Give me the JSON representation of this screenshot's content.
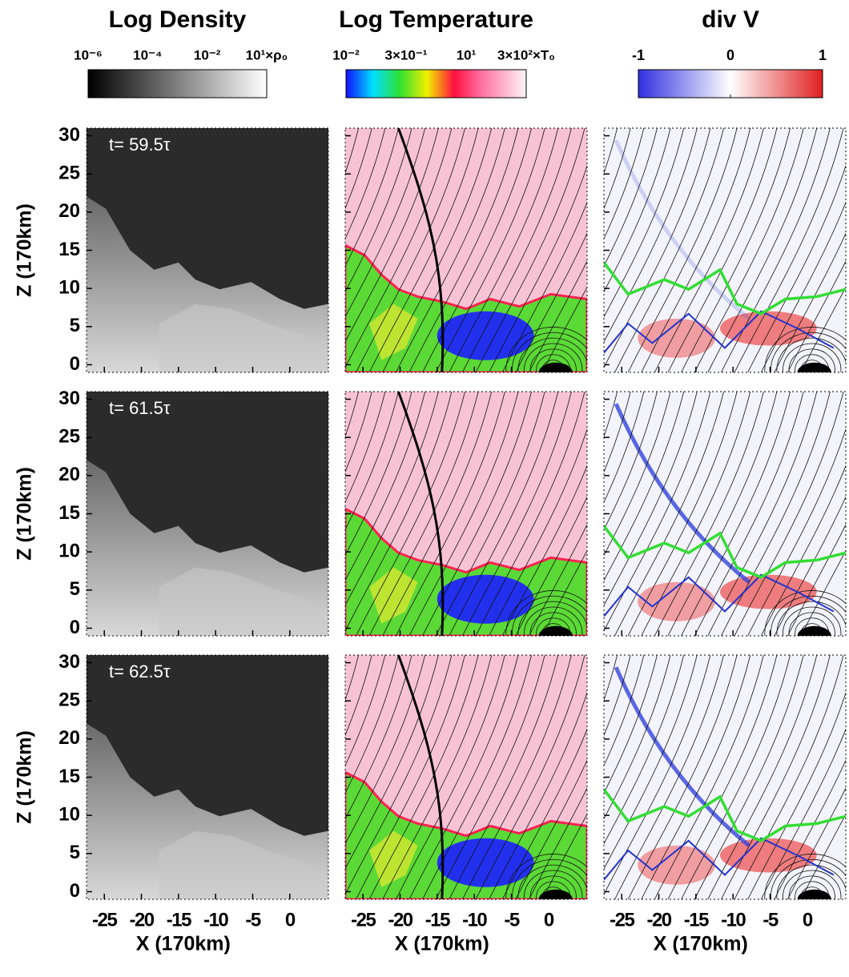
{
  "colorbars": [
    {
      "title": "Log Density",
      "tick_labels": [
        "10⁻⁶",
        "10⁻⁴",
        "10⁻²",
        "10¹×ρ₀"
      ]
    },
    {
      "title": "Log Temperature",
      "tick_labels": [
        "10⁻²",
        "3×10⁻¹",
        "10¹",
        "3×10²×T₀"
      ]
    },
    {
      "title": "div V",
      "lim": [
        -1,
        1
      ],
      "ticks": [
        -1,
        0,
        1
      ]
    }
  ],
  "rows": [
    {
      "time": "t= 59.5τ"
    },
    {
      "time": "t= 61.5τ"
    },
    {
      "time": "t= 62.5τ"
    }
  ],
  "axes": {
    "xlabel": "X (170km)",
    "ylabel": "Z (170km)",
    "xlim": [
      -27.4,
      5.2
    ],
    "ylim": [
      -1,
      31
    ],
    "xticks": [
      -25,
      -20,
      -15,
      -10,
      -5,
      0
    ],
    "yticks": [
      0,
      5,
      10,
      15,
      20,
      25,
      30
    ]
  }
}
